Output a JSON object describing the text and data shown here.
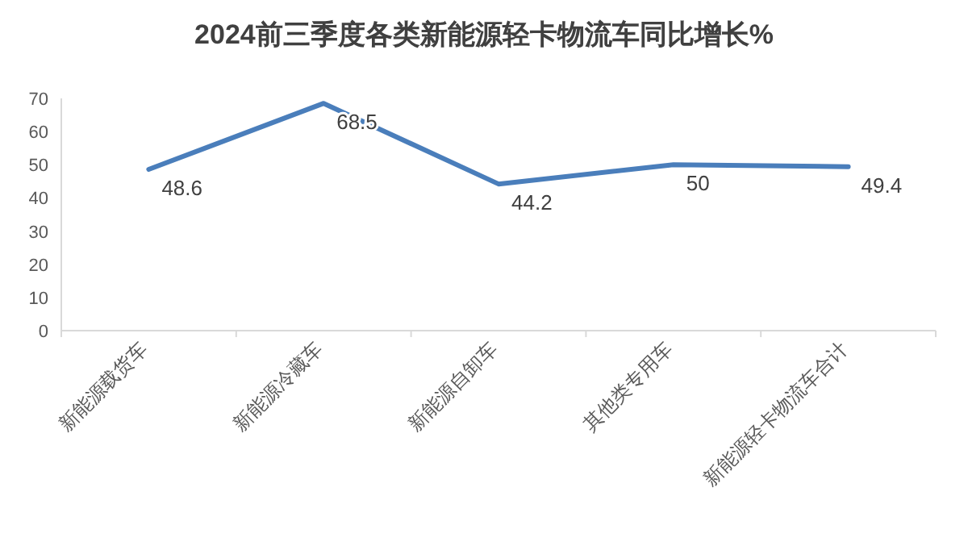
{
  "chart_data": {
    "type": "line",
    "title": "2024前三季度各类新能源轻卡物流车同比增长%",
    "categories": [
      "新能源载货车",
      "新能源冷藏车",
      "新能源自卸车",
      "其他类专用车",
      "新能源轻卡物流车合计"
    ],
    "values": [
      48.6,
      68.5,
      44.2,
      50,
      49.4
    ],
    "color": "#4a7ebb",
    "ylim": [
      0,
      70
    ],
    "yticks": [
      0,
      10,
      20,
      30,
      40,
      50,
      60,
      70
    ],
    "data_labels": true,
    "line_style": "solid",
    "grid": false
  }
}
